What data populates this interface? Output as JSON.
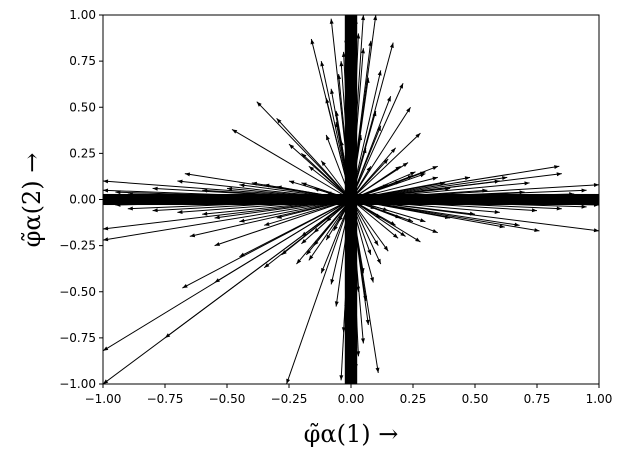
{
  "chart_data": {
    "type": "quiver",
    "title": "",
    "xlabel": "φ̃α(1) →",
    "ylabel": "φ̃α(2) →",
    "xlim": [
      -1.0,
      1.0
    ],
    "ylim": [
      -1.0,
      1.0
    ],
    "x_ticks": [
      "−1.00",
      "−0.75",
      "−0.50",
      "−0.25",
      "0.00",
      "0.25",
      "0.50",
      "0.75",
      "1.00"
    ],
    "y_ticks": [
      "−1.00",
      "−0.75",
      "−0.50",
      "−0.25",
      "0.00",
      "0.25",
      "0.50",
      "0.75",
      "1.00"
    ],
    "x_tick_values": [
      -1.0,
      -0.75,
      -0.5,
      -0.25,
      0.0,
      0.25,
      0.5,
      0.75,
      1.0
    ],
    "y_tick_values": [
      -1.0,
      -0.75,
      -0.5,
      -0.25,
      0.0,
      0.25,
      0.5,
      0.75,
      1.0
    ],
    "origin": [
      0,
      0
    ],
    "grid": false,
    "color": "#000000",
    "vectors": [
      [
        0.85,
        0.14
      ],
      [
        0.84,
        0.18
      ],
      [
        0.63,
        0.12
      ],
      [
        0.72,
        0.09
      ],
      [
        0.95,
        0.05
      ],
      [
        1.0,
        0.08
      ],
      [
        0.6,
        0.1
      ],
      [
        0.48,
        0.12
      ],
      [
        0.35,
        0.12
      ],
      [
        0.3,
        0.15
      ],
      [
        0.25,
        0.13
      ],
      [
        0.2,
        0.1
      ],
      [
        0.15,
        0.08
      ],
      [
        0.4,
        0.06
      ],
      [
        0.55,
        0.05
      ],
      [
        0.7,
        0.04
      ],
      [
        0.9,
        0.03
      ],
      [
        1.0,
        0.02
      ],
      [
        0.45,
        0.02
      ],
      [
        0.8,
        -0.02
      ],
      [
        1.0,
        -0.03
      ],
      [
        0.95,
        -0.04
      ],
      [
        0.85,
        -0.05
      ],
      [
        0.75,
        -0.06
      ],
      [
        0.6,
        -0.07
      ],
      [
        0.5,
        -0.08
      ],
      [
        0.4,
        -0.1
      ],
      [
        0.3,
        -0.12
      ],
      [
        0.2,
        -0.1
      ],
      [
        0.15,
        -0.06
      ],
      [
        0.62,
        -0.15
      ],
      [
        0.76,
        -0.17
      ],
      [
        1.0,
        -0.17
      ],
      [
        0.68,
        -0.14
      ],
      [
        0.35,
        -0.18
      ],
      [
        0.28,
        -0.23
      ],
      [
        0.22,
        -0.2
      ],
      [
        0.18,
        -0.14
      ],
      [
        0.12,
        -0.1
      ],
      [
        0.1,
        -0.05
      ],
      [
        -0.95,
        0.04
      ],
      [
        -1.0,
        0.05
      ],
      [
        -0.9,
        0.03
      ],
      [
        -0.85,
        0.02
      ],
      [
        -0.8,
        0.06
      ],
      [
        -0.7,
        0.1
      ],
      [
        -0.67,
        0.14
      ],
      [
        -0.5,
        0.06
      ],
      [
        -0.45,
        0.08
      ],
      [
        -0.4,
        0.09
      ],
      [
        -0.35,
        0.08
      ],
      [
        -0.3,
        0.07
      ],
      [
        -0.25,
        0.1
      ],
      [
        -0.2,
        0.09
      ],
      [
        -0.15,
        0.06
      ],
      [
        -0.1,
        0.04
      ],
      [
        -0.6,
        0.05
      ],
      [
        -1.0,
        0.1
      ],
      [
        -1.0,
        0.02
      ],
      [
        -0.75,
        0.01
      ],
      [
        -1.0,
        -0.02
      ],
      [
        -0.95,
        -0.03
      ],
      [
        -0.9,
        -0.05
      ],
      [
        -0.8,
        -0.06
      ],
      [
        -0.7,
        -0.07
      ],
      [
        -0.6,
        -0.08
      ],
      [
        -0.55,
        -0.1
      ],
      [
        -0.45,
        -0.12
      ],
      [
        -0.35,
        -0.14
      ],
      [
        -0.3,
        -0.1
      ],
      [
        -1.0,
        -0.22
      ],
      [
        -1.0,
        -0.16
      ],
      [
        -0.65,
        -0.2
      ],
      [
        -0.55,
        -0.25
      ],
      [
        -0.45,
        -0.31
      ],
      [
        -0.35,
        -0.37
      ],
      [
        -0.28,
        -0.3
      ],
      [
        -0.2,
        -0.24
      ],
      [
        -0.15,
        -0.18
      ],
      [
        -0.1,
        -0.12
      ],
      [
        -0.48,
        0.38
      ],
      [
        -0.38,
        0.53
      ],
      [
        -0.3,
        0.44
      ],
      [
        -0.25,
        0.3
      ],
      [
        -0.2,
        0.25
      ],
      [
        -0.17,
        0.18
      ],
      [
        -0.12,
        0.21
      ],
      [
        -0.1,
        0.35
      ],
      [
        -0.06,
        0.42
      ],
      [
        -0.08,
        0.6
      ],
      [
        -0.05,
        0.68
      ],
      [
        -0.04,
        0.75
      ],
      [
        -0.03,
        0.8
      ],
      [
        -0.02,
        0.88
      ],
      [
        -0.01,
        0.95
      ],
      [
        0.0,
        1.0
      ],
      [
        0.02,
        0.98
      ],
      [
        0.03,
        0.9
      ],
      [
        0.05,
        0.82
      ],
      [
        0.07,
        0.66
      ],
      [
        0.1,
        0.48
      ],
      [
        0.12,
        0.4
      ],
      [
        0.15,
        0.22
      ],
      [
        0.18,
        0.28
      ],
      [
        0.2,
        0.18
      ],
      [
        0.23,
        0.2
      ],
      [
        0.26,
        0.15
      ],
      [
        0.3,
        0.14
      ],
      [
        0.35,
        0.18
      ],
      [
        0.38,
        0.09
      ],
      [
        0.17,
        0.85
      ],
      [
        0.21,
        0.63
      ],
      [
        0.24,
        0.5
      ],
      [
        0.28,
        0.36
      ],
      [
        0.16,
        0.56
      ],
      [
        0.12,
        0.7
      ],
      [
        0.08,
        0.86
      ],
      [
        0.05,
        1.0
      ],
      [
        0.1,
        1.0
      ],
      [
        -0.08,
        0.98
      ],
      [
        -0.16,
        0.87
      ],
      [
        -0.12,
        0.75
      ],
      [
        -0.1,
        0.55
      ],
      [
        -0.06,
        0.48
      ],
      [
        -0.04,
        0.32
      ],
      [
        -0.02,
        0.2
      ],
      [
        0.02,
        0.25
      ],
      [
        0.04,
        0.35
      ],
      [
        0.06,
        0.28
      ],
      [
        0.08,
        0.18
      ],
      [
        -0.01,
        -0.95
      ],
      [
        0.0,
        -1.0
      ],
      [
        0.02,
        -0.92
      ],
      [
        0.03,
        -0.85
      ],
      [
        0.05,
        -0.78
      ],
      [
        0.07,
        -0.68
      ],
      [
        0.11,
        -0.94
      ],
      [
        0.06,
        -0.55
      ],
      [
        0.09,
        -0.45
      ],
      [
        0.12,
        -0.35
      ],
      [
        0.15,
        -0.28
      ],
      [
        0.19,
        -0.21
      ],
      [
        0.11,
        -0.25
      ],
      [
        0.08,
        -0.3
      ],
      [
        0.05,
        -0.4
      ],
      [
        0.03,
        -0.5
      ],
      [
        -0.03,
        -0.72
      ],
      [
        -0.06,
        -0.58
      ],
      [
        -0.08,
        -0.46
      ],
      [
        -0.12,
        -0.4
      ],
      [
        -0.18,
        -0.3
      ],
      [
        -0.15,
        -0.25
      ],
      [
        -0.1,
        -0.22
      ],
      [
        -0.07,
        -0.17
      ],
      [
        -0.05,
        -0.12
      ],
      [
        -0.2,
        -0.2
      ],
      [
        -0.17,
        -0.33
      ],
      [
        -0.04,
        -0.98
      ],
      [
        -0.26,
        -1.0
      ],
      [
        0.25,
        -0.12
      ],
      [
        -1.0,
        -0.82
      ],
      [
        -0.75,
        -0.75
      ],
      [
        -1.0,
        -1.0
      ],
      [
        -0.68,
        -0.48
      ],
      [
        -0.55,
        -0.45
      ],
      [
        -0.22,
        -0.35
      ],
      [
        0.01,
        -0.7
      ],
      [
        -0.02,
        -0.6
      ],
      [
        0.0,
        -0.8
      ],
      [
        0.01,
        -0.4
      ]
    ]
  }
}
